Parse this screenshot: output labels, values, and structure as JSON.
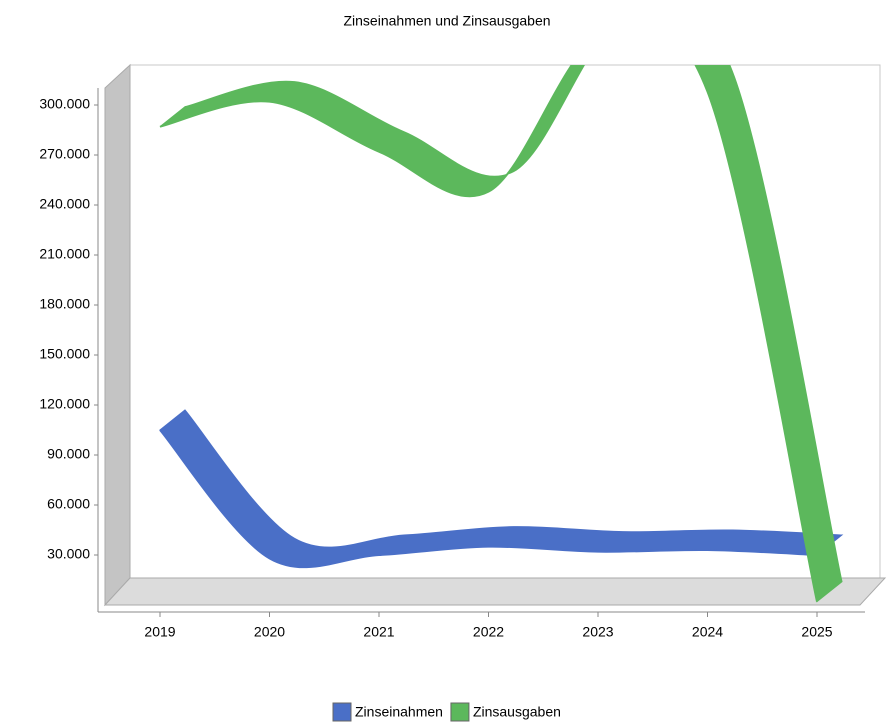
{
  "chart_data": {
    "type": "line",
    "title": "Zinseinahmen und Zinsausgaben",
    "categories": [
      "2019",
      "2020",
      "2021",
      "2022",
      "2023",
      "2024",
      "2025"
    ],
    "series": [
      {
        "name": "Zinseinahmen",
        "color": "#4a6fc7",
        "values": [
          105000,
          28000,
          30000,
          35000,
          32000,
          33000,
          30000
        ]
      },
      {
        "name": "Zinsausgaben",
        "color": "#5cb85c",
        "values": [
          287000,
          302000,
          272000,
          248000,
          340000,
          308000,
          2000
        ]
      }
    ],
    "ylim": [
      0,
      320000
    ],
    "yticks": [
      {
        "value": 30000,
        "label": "30.000"
      },
      {
        "value": 60000,
        "label": "60.000"
      },
      {
        "value": 90000,
        "label": "90.000"
      },
      {
        "value": 120000,
        "label": "120.000"
      },
      {
        "value": 150000,
        "label": "150.000"
      },
      {
        "value": 180000,
        "label": "180.000"
      },
      {
        "value": 210000,
        "label": "210.000"
      },
      {
        "value": 240000,
        "label": "240.000"
      },
      {
        "value": 270000,
        "label": "270.000"
      },
      {
        "value": 300000,
        "label": "300.000"
      }
    ]
  }
}
